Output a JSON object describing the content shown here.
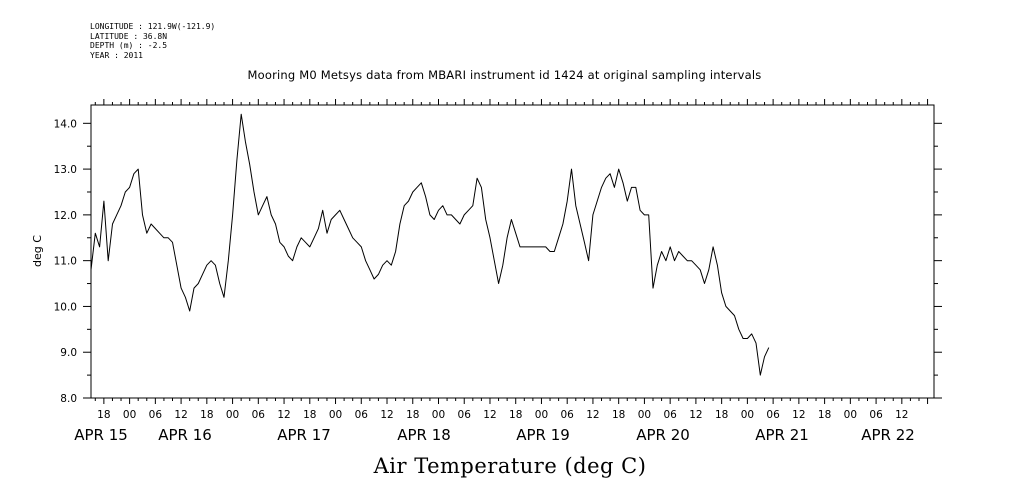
{
  "metadata": {
    "longitude": "LONGITUDE : 121.9W(-121.9)",
    "latitude": "LATITUDE : 36.8N",
    "depth": "DEPTH (m) : -2.5",
    "year": "YEAR : 2011"
  },
  "chart_data": {
    "type": "line",
    "title": "Mooring M0 Metsys data from MBARI instrument id 1424 at original sampling intervals",
    "xlabel": "Air Temperature (deg C)",
    "ylabel": "deg C",
    "ylim": [
      8.0,
      14.4
    ],
    "yticks": [
      "8.0",
      "9.0",
      "10.0",
      "11.0",
      "12.0",
      "13.0",
      "14.0"
    ],
    "xlim_hours": [
      15,
      211.5
    ],
    "hour_tick_labels": [
      "18",
      "00",
      "06",
      "12",
      "18",
      "00",
      "06",
      "12",
      "18",
      "00",
      "06",
      "12",
      "18",
      "00",
      "06",
      "12",
      "18",
      "00",
      "06",
      "12",
      "18",
      "00",
      "06",
      "12",
      "18",
      "00",
      "06",
      "12",
      "18",
      "00",
      "06",
      "12"
    ],
    "date_labels": [
      "APR 15",
      "APR 16",
      "APR 17",
      "APR 18",
      "APR 19",
      "APR 20",
      "APR 21",
      "APR 22"
    ],
    "grid": false,
    "series": [
      {
        "x_start": "APR 15 15:00",
        "x_step_hours": 1,
        "y": [
          10.8,
          11.6,
          11.3,
          12.3,
          11.0,
          11.8,
          12.0,
          12.2,
          12.5,
          12.6,
          12.9,
          13.0,
          12.0,
          11.6,
          11.8,
          11.7,
          11.6,
          11.5,
          11.5,
          11.4,
          10.9,
          10.4,
          10.2,
          9.9,
          10.4,
          10.5,
          10.7,
          10.9,
          11.0,
          10.9,
          10.5,
          10.2,
          11.0,
          12.0,
          13.2,
          14.2,
          13.6,
          13.1,
          12.5,
          12.0,
          12.2,
          12.4,
          12.0,
          11.8,
          11.4,
          11.3,
          11.1,
          11.0,
          11.3,
          11.5,
          11.4,
          11.3,
          11.5,
          11.7,
          12.1,
          11.6,
          11.9,
          12.0,
          12.1,
          11.9,
          11.7,
          11.5,
          11.4,
          11.3,
          11.0,
          10.8,
          10.6,
          10.7,
          10.9,
          11.0,
          10.9,
          11.2,
          11.8,
          12.2,
          12.3,
          12.5,
          12.6,
          12.7,
          12.4,
          12.0,
          11.9,
          12.1,
          12.2,
          12.0,
          12.0,
          11.9,
          11.8,
          12.0,
          12.1,
          12.2,
          12.8,
          12.6,
          11.9,
          11.5,
          11.0,
          10.5,
          10.9,
          11.5,
          11.9,
          11.6,
          11.3,
          11.3,
          11.3,
          11.3,
          11.3,
          11.3,
          11.3,
          11.2,
          11.2,
          11.5,
          11.8,
          12.3,
          13.0,
          12.2,
          11.8,
          11.4,
          11.0,
          12.0,
          12.3,
          12.6,
          12.8,
          12.9,
          12.6,
          13.0,
          12.7,
          12.3,
          12.6,
          12.6,
          12.1,
          12.0,
          12.0,
          10.4,
          10.9,
          11.2,
          11.0,
          11.3,
          11.0,
          11.2,
          11.1,
          11.0,
          11.0,
          10.9,
          10.8,
          10.5,
          10.8,
          11.3,
          10.9,
          10.3,
          10.0,
          9.9,
          9.8,
          9.5,
          9.3,
          9.3,
          9.4,
          9.2,
          8.5,
          8.9,
          9.1
        ]
      }
    ]
  }
}
